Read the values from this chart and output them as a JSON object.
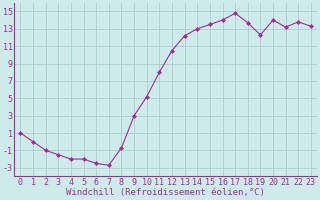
{
  "x": [
    0,
    1,
    2,
    3,
    4,
    5,
    6,
    7,
    8,
    9,
    10,
    11,
    12,
    13,
    14,
    15,
    16,
    17,
    18,
    19,
    20,
    21,
    22,
    23
  ],
  "y": [
    1,
    0,
    -1,
    -1.5,
    -2,
    -2,
    -2.5,
    -2.7,
    -0.7,
    3,
    5.2,
    8,
    10.5,
    12.2,
    13,
    13.5,
    14,
    14.8,
    13.7,
    12.3,
    14,
    13.2,
    13.8,
    13.3
  ],
  "line_color": "#9b3090",
  "marker": "D",
  "marker_size": 2,
  "bg_color": "#ceeaea",
  "grid_color": "#aacece",
  "xlabel": "Windchill (Refroidissement éolien,°C)",
  "xlabel_fontsize": 6.5,
  "tick_fontsize": 6,
  "ylim": [
    -4,
    16
  ],
  "xlim": [
    -0.5,
    23.5
  ],
  "yticks": [
    -3,
    -1,
    1,
    3,
    5,
    7,
    9,
    11,
    13,
    15
  ],
  "xticks": [
    0,
    1,
    2,
    3,
    4,
    5,
    6,
    7,
    8,
    9,
    10,
    11,
    12,
    13,
    14,
    15,
    16,
    17,
    18,
    19,
    20,
    21,
    22,
    23
  ]
}
